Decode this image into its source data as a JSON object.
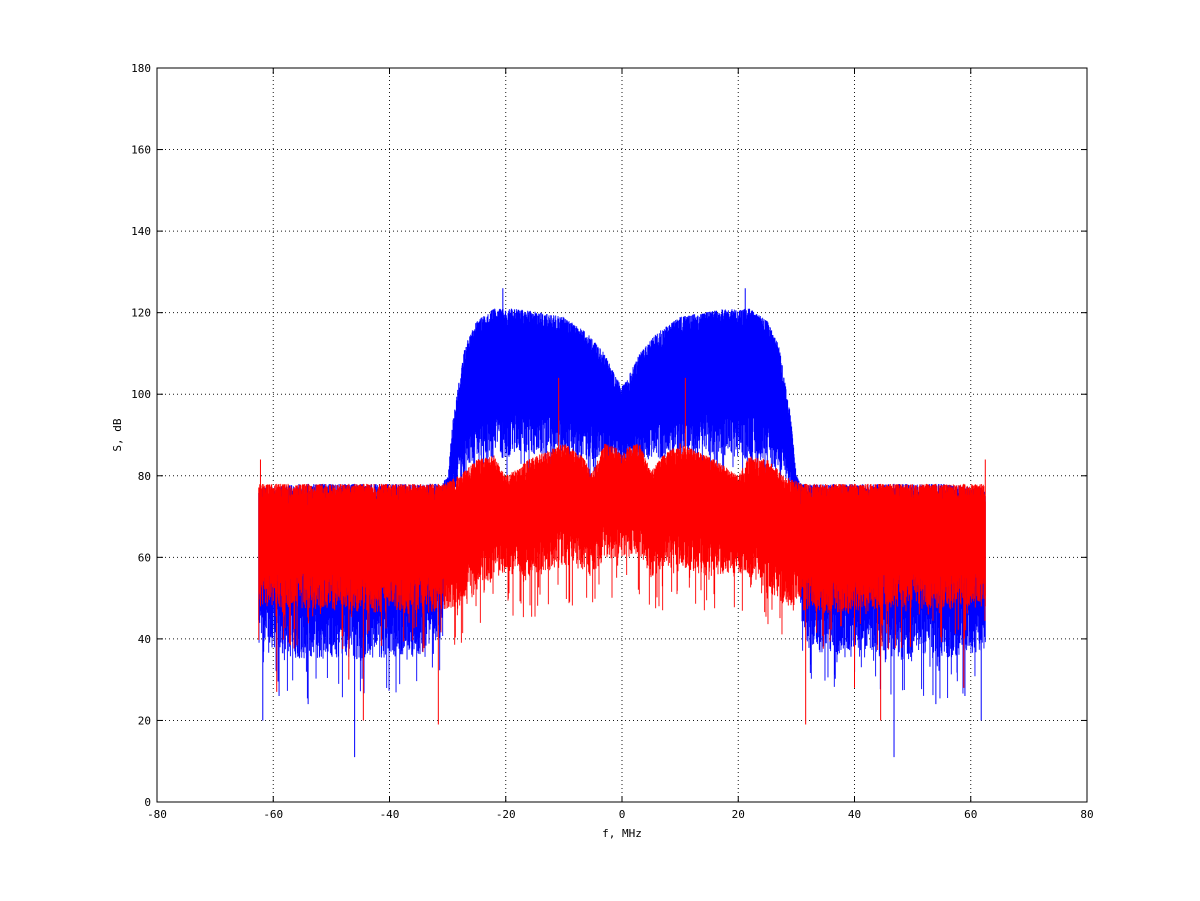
{
  "chart_data": {
    "type": "line",
    "title": "",
    "xlabel": "f, MHz",
    "ylabel": "S, dB",
    "xlim": [
      -80,
      80
    ],
    "ylim": [
      0,
      180
    ],
    "xticks": [
      -80,
      -60,
      -40,
      -20,
      0,
      20,
      40,
      60,
      80
    ],
    "yticks": [
      0,
      20,
      40,
      60,
      80,
      100,
      120,
      140,
      160,
      180
    ],
    "grid": true,
    "legend": "none",
    "data_range_x": [
      -62.5,
      62.5
    ],
    "series": [
      {
        "color": "#0000ff",
        "envelope": {
          "x": [
            -62.5,
            -55,
            -45,
            -35,
            -31,
            -30,
            -29,
            -27,
            -25,
            -22,
            -18,
            -14,
            -10,
            -6,
            -3,
            -1,
            0,
            1,
            3,
            6,
            10,
            14,
            18,
            22,
            25,
            27,
            29,
            30,
            31,
            35,
            45,
            55,
            62.5
          ],
          "upper": [
            77,
            78,
            78,
            78,
            78,
            80,
            95,
            112,
            118,
            121,
            121,
            120,
            119,
            115,
            110,
            104,
            102,
            104,
            110,
            115,
            119,
            120,
            121,
            121,
            118,
            112,
            95,
            80,
            78,
            78,
            78,
            78,
            77
          ],
          "lower": [
            37,
            35,
            35,
            36,
            40,
            70,
            76,
            80,
            82,
            84,
            85,
            85,
            85,
            84,
            84,
            84,
            83,
            84,
            84,
            84,
            85,
            85,
            85,
            84,
            82,
            80,
            76,
            70,
            40,
            36,
            35,
            35,
            37
          ]
        },
        "peaks": [
          {
            "x": -20.5,
            "y": 126
          },
          {
            "x": 21.2,
            "y": 126
          },
          {
            "x": -46,
            "y": 11
          },
          {
            "x": 46.8,
            "y": 11
          },
          {
            "x": -61.8,
            "y": 20
          },
          {
            "x": 61.8,
            "y": 20
          },
          {
            "x": -59,
            "y": 26
          },
          {
            "x": 59,
            "y": 26
          },
          {
            "x": -54,
            "y": 24
          },
          {
            "x": 54,
            "y": 24
          }
        ]
      },
      {
        "color": "#ff0000",
        "envelope": {
          "x": [
            -62.5,
            -50,
            -35,
            -31,
            -28,
            -25,
            -22,
            -20,
            -16,
            -13,
            -10,
            -7,
            -5,
            -3,
            -1,
            0,
            1,
            3,
            5,
            7,
            10,
            13,
            16,
            20,
            22,
            25,
            28,
            31,
            35,
            50,
            62.5
          ],
          "upper": [
            78,
            78,
            78,
            78,
            80,
            84,
            85,
            80,
            84,
            86,
            88,
            85,
            81,
            88,
            87,
            85,
            87,
            88,
            81,
            85,
            88,
            86,
            84,
            80,
            85,
            84,
            80,
            78,
            78,
            78,
            78
          ],
          "lower": [
            48,
            47,
            46,
            47,
            48,
            52,
            55,
            56,
            55,
            56,
            58,
            57,
            55,
            60,
            60,
            60,
            60,
            60,
            55,
            57,
            58,
            56,
            55,
            56,
            55,
            52,
            48,
            47,
            46,
            47,
            48
          ]
        },
        "peaks": [
          {
            "x": -62.2,
            "y": 84
          },
          {
            "x": 62.5,
            "y": 84
          },
          {
            "x": -10.9,
            "y": 104
          },
          {
            "x": 10.9,
            "y": 104
          },
          {
            "x": -31.6,
            "y": 19
          },
          {
            "x": 31.6,
            "y": 19
          },
          {
            "x": -44.5,
            "y": 20
          },
          {
            "x": 44.5,
            "y": 20
          },
          {
            "x": -59.4,
            "y": 27
          },
          {
            "x": 58.8,
            "y": 28
          },
          {
            "x": -47,
            "y": 30
          },
          {
            "x": 40,
            "y": 28
          }
        ]
      }
    ]
  }
}
